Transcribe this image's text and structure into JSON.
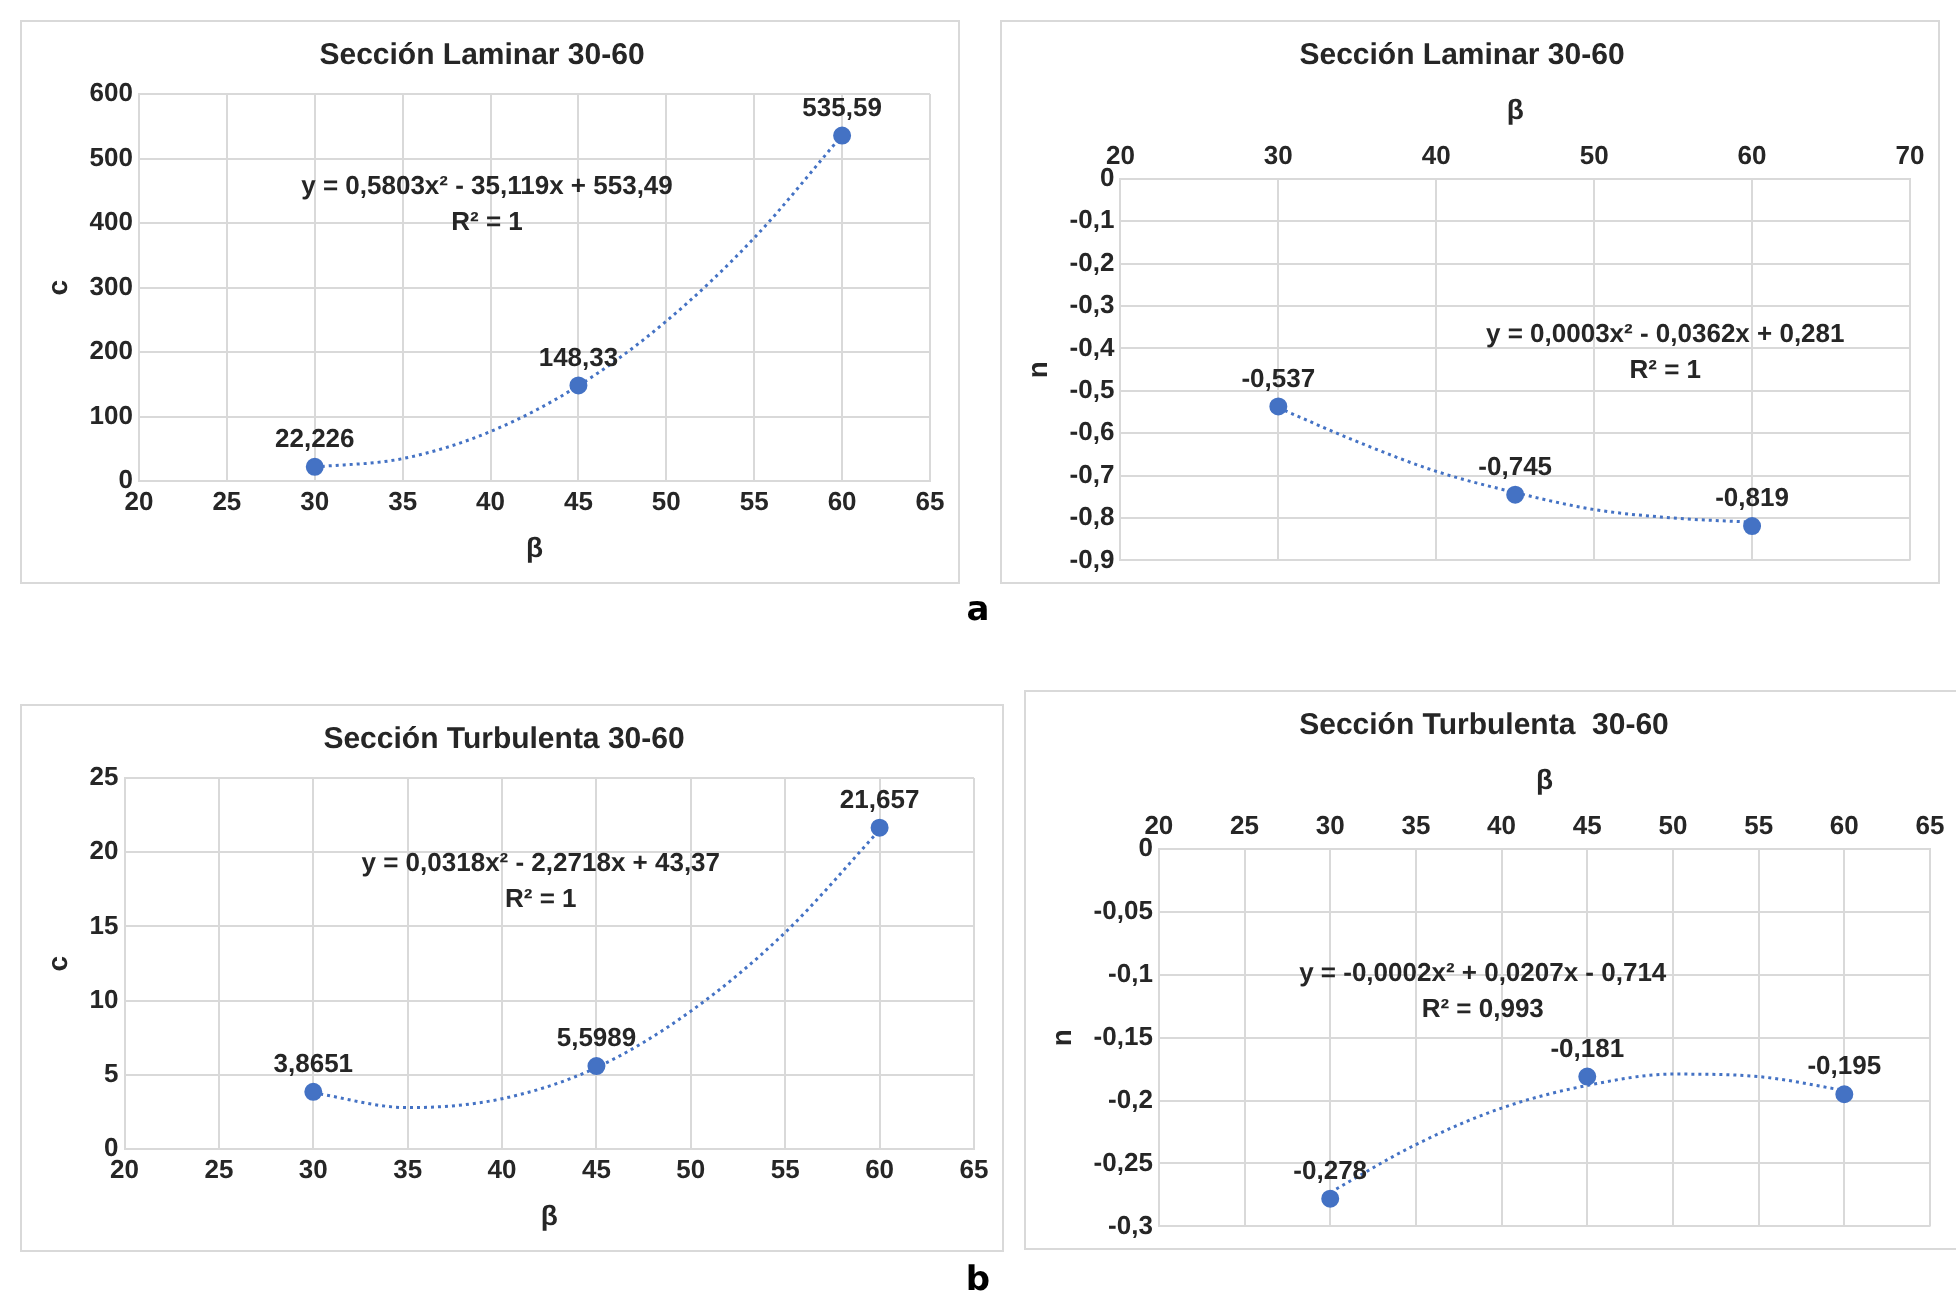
{
  "chart_data": [
    {
      "type": "scatter",
      "title": "Sección Laminar 30-60",
      "xlabel": "β",
      "ylabel": "c",
      "x": [
        30,
        45,
        60
      ],
      "marker": "circle",
      "grid": true,
      "series": [
        {
          "color": "#4472c4",
          "values": [
            22.226,
            148.33,
            535.59
          ],
          "value_labels": [
            "22,226",
            "148,33",
            "535,59"
          ]
        },
        {
          "type": "line",
          "marker": "none",
          "line_style": "dotted",
          "color": "#4472c4",
          "x": [
            30,
            35,
            40,
            45,
            50,
            55,
            60
          ],
          "values": [
            22,
            35,
            77,
            148,
            248,
            377,
            536
          ]
        }
      ],
      "xlim": [
        20,
        65
      ],
      "xticks": [
        20,
        25,
        30,
        35,
        40,
        45,
        50,
        55,
        60,
        65
      ],
      "ylim": [
        0,
        600
      ],
      "yticks": [
        0,
        100,
        200,
        300,
        400,
        500,
        600
      ],
      "annotations": [
        "y = 0,5803x² - 35,119x + 553,49",
        "R² = 1",
        "a"
      ]
    },
    {
      "type": "scatter",
      "title": "Sección Laminar 30-60",
      "xlabel": "β",
      "ylabel": "n",
      "x": [
        30,
        45,
        60
      ],
      "marker": "circle",
      "grid": true,
      "series": [
        {
          "color": "#4472c4",
          "values": [
            -0.537,
            -0.745,
            -0.819
          ],
          "value_labels": [
            "-0,537",
            "-0,745",
            "-0,819"
          ]
        },
        {
          "type": "line",
          "marker": "none",
          "line_style": "dotted",
          "color": "#4472c4",
          "x": [
            30,
            35,
            40,
            45,
            50,
            55,
            60
          ],
          "values": [
            -0.54,
            -0.62,
            -0.69,
            -0.74,
            -0.78,
            -0.8,
            -0.81
          ]
        }
      ],
      "xlim": [
        20,
        70
      ],
      "xticks": [
        20,
        30,
        40,
        50,
        60,
        70
      ],
      "ylim": [
        -0.9,
        0
      ],
      "yticks": [
        {
          "value": 0,
          "label": "0"
        },
        {
          "value": -0.1,
          "label": "-0,1"
        },
        {
          "value": -0.2,
          "label": "-0,2"
        },
        {
          "value": -0.3,
          "label": "-0,3"
        },
        {
          "value": -0.4,
          "label": "-0,4"
        },
        {
          "value": -0.5,
          "label": "-0,5"
        },
        {
          "value": -0.6,
          "label": "-0,6"
        },
        {
          "value": -0.7,
          "label": "-0,7"
        },
        {
          "value": -0.8,
          "label": "-0,8"
        },
        {
          "value": -0.9,
          "label": "-0,9"
        }
      ],
      "annotations": [
        "y = 0,0003x² - 0,0362x + 0,281",
        "R² = 1"
      ]
    },
    {
      "type": "scatter",
      "title": "Sección Turbulenta 30-60",
      "xlabel": "β",
      "ylabel": "c",
      "x": [
        30,
        45,
        60
      ],
      "marker": "circle",
      "grid": true,
      "series": [
        {
          "color": "#4472c4",
          "values": [
            3.8651,
            5.5989,
            21.657
          ],
          "value_labels": [
            "3,8651",
            "5,5989",
            "21,657"
          ]
        },
        {
          "type": "line",
          "marker": "none",
          "line_style": "dotted",
          "color": "#4472c4",
          "x": [
            30,
            35,
            40,
            45,
            50,
            55,
            60
          ],
          "values": [
            3.8,
            2.8,
            3.4,
            5.5,
            9.3,
            14.6,
            21.5
          ]
        }
      ],
      "xlim": [
        20,
        65
      ],
      "xticks": [
        20,
        25,
        30,
        35,
        40,
        45,
        50,
        55,
        60,
        65
      ],
      "ylim": [
        0,
        25
      ],
      "yticks": [
        0,
        5,
        10,
        15,
        20,
        25
      ],
      "annotations": [
        "y = 0,0318x² - 2,2718x + 43,37",
        "R² = 1",
        "b"
      ]
    },
    {
      "type": "scatter",
      "title": "Sección Turbulenta  30-60",
      "xlabel": "β",
      "ylabel": "n",
      "x": [
        30,
        45,
        60
      ],
      "marker": "circle",
      "grid": true,
      "series": [
        {
          "color": "#4472c4",
          "values": [
            -0.278,
            -0.181,
            -0.195
          ],
          "value_labels": [
            "-0,278",
            "-0,181",
            "-0,195"
          ]
        },
        {
          "type": "line",
          "marker": "none",
          "line_style": "dotted",
          "color": "#4472c4",
          "x": [
            30,
            35,
            40,
            45,
            50,
            55,
            60
          ],
          "values": [
            -0.273,
            -0.235,
            -0.206,
            -0.188,
            -0.179,
            -0.181,
            -0.192
          ]
        }
      ],
      "xlim": [
        20,
        65
      ],
      "xticks": [
        20,
        25,
        30,
        35,
        40,
        45,
        50,
        55,
        60,
        65
      ],
      "ylim": [
        -0.3,
        0
      ],
      "yticks": [
        {
          "value": 0,
          "label": "0"
        },
        {
          "value": -0.05,
          "label": "-0,05"
        },
        {
          "value": -0.1,
          "label": "-0,1"
        },
        {
          "value": -0.15,
          "label": "-0,15"
        },
        {
          "value": -0.2,
          "label": "-0,2"
        },
        {
          "value": -0.25,
          "label": "-0,25"
        },
        {
          "value": -0.3,
          "label": "-0,3"
        }
      ],
      "annotations": [
        "y = -0,0002x² + 0,0207x - 0,714",
        "R² = 0,993"
      ]
    }
  ]
}
